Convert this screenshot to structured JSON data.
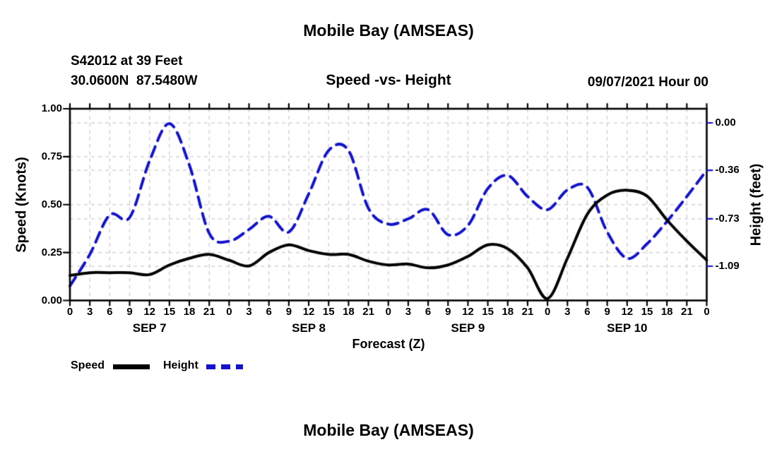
{
  "header": {
    "title": "Mobile Bay (AMSEAS)",
    "station": "S42012 at 39 Feet",
    "coords": "30.0600N  87.5480W",
    "plot_title": "Speed -vs- Height",
    "datetime": "09/07/2021 Hour 00"
  },
  "footer": {
    "title": "Mobile Bay (AMSEAS)"
  },
  "legend": {
    "speed_label": "Speed",
    "height_label": "Height"
  },
  "colors": {
    "speed_line": "#000000",
    "height_line": "#1313cc",
    "grid": "#c9c9c9",
    "axis": "#000000",
    "text": "#000000"
  },
  "chart_data": {
    "type": "line",
    "title": "Speed -vs- Height",
    "xlabel": "Forecast (Z)",
    "x_hours": [
      0,
      3,
      6,
      9,
      12,
      15,
      18,
      21,
      24,
      27,
      30,
      33,
      36,
      39,
      42,
      45,
      48,
      51,
      54,
      57,
      60,
      63,
      66,
      69,
      72,
      75,
      78,
      81,
      84,
      87,
      90,
      93,
      96
    ],
    "x_tick_labels": [
      "0",
      "3",
      "6",
      "9",
      "12",
      "15",
      "18",
      "21",
      "0",
      "3",
      "6",
      "9",
      "12",
      "15",
      "18",
      "21",
      "0",
      "3",
      "6",
      "9",
      "12",
      "15",
      "18",
      "21",
      "0",
      "3",
      "6",
      "9",
      "12",
      "15",
      "18",
      "21",
      "0"
    ],
    "day_labels": [
      {
        "label": "SEP 7",
        "center_hour": 12
      },
      {
        "label": "SEP 8",
        "center_hour": 36
      },
      {
        "label": "SEP 9",
        "center_hour": 60
      },
      {
        "label": "SEP 10",
        "center_hour": 84
      }
    ],
    "left_axis": {
      "label": "Speed (Knots)",
      "tick_labels": [
        "0.00",
        "0.25",
        "0.50",
        "0.75",
        "1.00"
      ],
      "tick_values": [
        0,
        0.25,
        0.5,
        0.75,
        1.0
      ],
      "range": [
        0,
        1.0
      ]
    },
    "right_axis": {
      "label": "Height (feet)",
      "tick_labels": [
        "0.00",
        "-0.36",
        "-0.73",
        "-1.09"
      ],
      "tick_values": [
        0,
        -0.36,
        -0.73,
        -1.09
      ]
    },
    "grid": true,
    "legend_position": "below-left",
    "series": [
      {
        "name": "Speed",
        "axis": "left",
        "unit": "knots",
        "line": "solid",
        "color": "#000000",
        "values": [
          0.13,
          0.145,
          0.145,
          0.145,
          0.135,
          0.185,
          0.22,
          0.24,
          0.21,
          0.18,
          0.25,
          0.29,
          0.26,
          0.24,
          0.24,
          0.205,
          0.185,
          0.19,
          0.17,
          0.185,
          0.23,
          0.29,
          0.27,
          0.17,
          0.01,
          0.22,
          0.45,
          0.55,
          0.575,
          0.545,
          0.42,
          0.31,
          0.21
        ]
      },
      {
        "name": "Height",
        "axis": "right",
        "unit": "feet",
        "line": "dashed",
        "color": "#1313cc",
        "values": [
          -1.24,
          -1.0,
          -0.7,
          -0.72,
          -0.29,
          -0.005,
          -0.32,
          -0.84,
          -0.9,
          -0.81,
          -0.71,
          -0.83,
          -0.54,
          -0.21,
          -0.21,
          -0.65,
          -0.77,
          -0.73,
          -0.66,
          -0.85,
          -0.78,
          -0.5,
          -0.4,
          -0.56,
          -0.66,
          -0.51,
          -0.49,
          -0.83,
          -1.03,
          -0.92,
          -0.75,
          -0.56,
          -0.36
        ]
      }
    ]
  }
}
